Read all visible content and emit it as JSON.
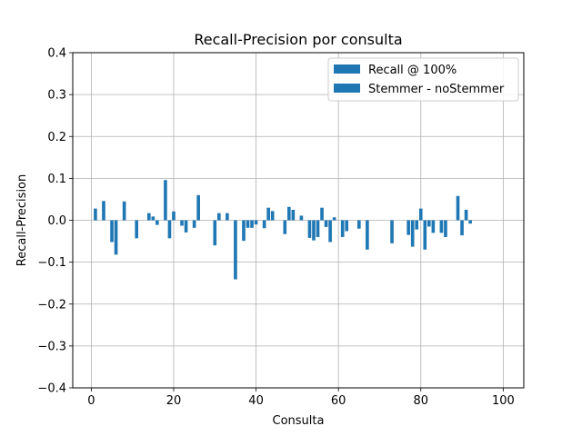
{
  "chart_data": {
    "type": "bar",
    "title": "Recall-Precision por consulta",
    "xlabel": "Consulta",
    "ylabel": "Recall-Precision",
    "xlim": [
      -4.5,
      105
    ],
    "ylim": [
      -0.4,
      0.4
    ],
    "x_ticks": [
      0,
      20,
      40,
      60,
      80,
      100
    ],
    "x_tick_labels": [
      "0",
      "20",
      "40",
      "60",
      "80",
      "100"
    ],
    "y_ticks": [
      -0.4,
      -0.3,
      -0.2,
      -0.1,
      0.0,
      0.1,
      0.2,
      0.3,
      0.4
    ],
    "y_tick_labels": [
      "−0.4",
      "−0.3",
      "−0.2",
      "−0.1",
      "0.0",
      "0.1",
      "0.2",
      "0.3",
      "0.4"
    ],
    "grid": true,
    "legend_position": "top-right",
    "legend": [
      "Recall @ 100%",
      "Stemmer - noStemmer"
    ],
    "colors": {
      "bars": "#1f77b4",
      "grid": "#b0b0b0",
      "axes": "#000000"
    },
    "series": [
      {
        "name": "Stemmer - noStemmer",
        "x": [
          1,
          3,
          5,
          6,
          8,
          11,
          14,
          15,
          16,
          18,
          19,
          20,
          22,
          23,
          25,
          26,
          30,
          31,
          33,
          35,
          37,
          38,
          39,
          40,
          42,
          43,
          44,
          47,
          48,
          49,
          51,
          53,
          54,
          55,
          56,
          57,
          58,
          59,
          61,
          62,
          65,
          67,
          73,
          77,
          78,
          79,
          80,
          81,
          82,
          83,
          85,
          86,
          89,
          90,
          91,
          92
        ],
        "values": [
          0.028,
          0.046,
          -0.052,
          -0.082,
          0.045,
          -0.043,
          0.017,
          0.009,
          -0.011,
          0.096,
          -0.043,
          0.021,
          -0.013,
          -0.029,
          -0.018,
          0.06,
          -0.06,
          0.017,
          0.017,
          -0.141,
          -0.049,
          -0.018,
          -0.018,
          -0.01,
          -0.019,
          0.03,
          0.022,
          -0.033,
          0.032,
          0.025,
          0.011,
          -0.042,
          -0.048,
          -0.04,
          0.03,
          -0.016,
          -0.052,
          0.007,
          -0.04,
          -0.026,
          -0.02,
          -0.07,
          -0.055,
          -0.035,
          -0.063,
          -0.022,
          0.028,
          -0.07,
          -0.015,
          -0.03,
          -0.03,
          -0.04,
          0.058,
          -0.036,
          0.025,
          -0.008
        ]
      }
    ]
  }
}
